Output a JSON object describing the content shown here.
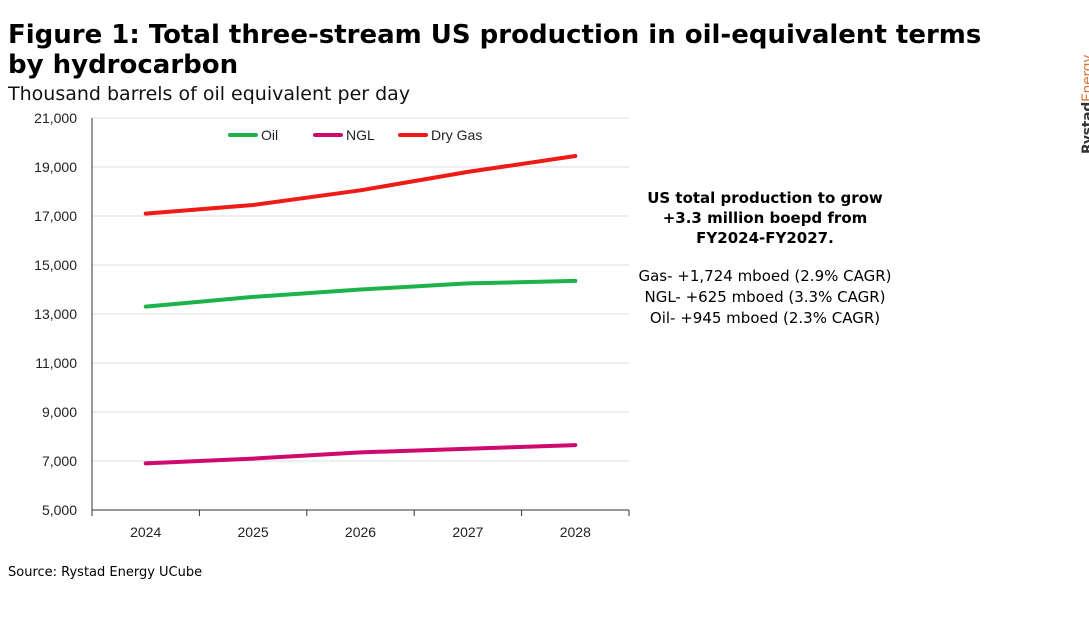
{
  "title": "Figure 1: Total three-stream US production in oil-equivalent terms by hydrocarbon",
  "subtitle": "Thousand barrels of oil equivalent per day",
  "logo": {
    "part1": "Rystad",
    "part2": "Energy"
  },
  "annotation": {
    "heading": [
      "US total production to grow",
      "+3.3 million boepd from",
      "FY2024-FY2027."
    ],
    "lines": [
      "Gas- +1,724 mboed (2.9% CAGR)",
      "NGL- +625 mboed (3.3% CAGR)",
      "Oil- +945 mboed (2.3% CAGR)"
    ]
  },
  "source": "Source: Rystad Energy UCube",
  "chart_data": {
    "type": "line",
    "x": [
      "2024",
      "2025",
      "2026",
      "2027",
      "2028"
    ],
    "ylim": [
      5000,
      21000
    ],
    "yticks": [
      5000,
      7000,
      9000,
      11000,
      13000,
      15000,
      17000,
      19000,
      21000
    ],
    "ytick_labels": [
      "5,000",
      "7,000",
      "9,000",
      "11,000",
      "13,000",
      "15,000",
      "17,000",
      "19,000",
      "21,000"
    ],
    "grid": true,
    "legend_position": "top",
    "series": [
      {
        "name": "Oil",
        "color": "#1db34a",
        "values": [
          13300,
          13700,
          14000,
          14250,
          14350
        ]
      },
      {
        "name": "NGL",
        "color": "#cf0a6e",
        "values": [
          6900,
          7100,
          7350,
          7500,
          7650
        ]
      },
      {
        "name": "Dry Gas",
        "color": "#ee1b16",
        "values": [
          17100,
          17450,
          18050,
          18800,
          19450
        ]
      }
    ]
  }
}
